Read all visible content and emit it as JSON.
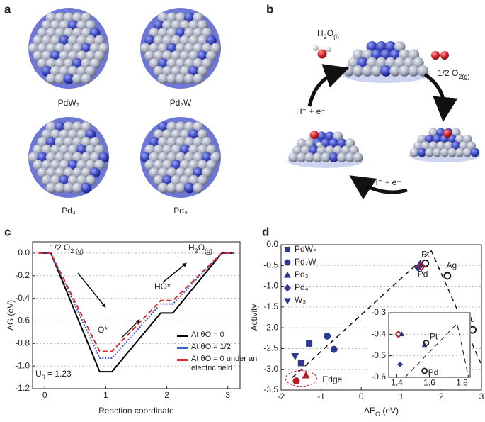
{
  "panel_labels": [
    "a",
    "b",
    "c",
    "d"
  ],
  "panel_a": {
    "labels": [
      "PdW₂",
      "Pd₂W",
      "Pd₃",
      "Pd₄"
    ]
  },
  "panel_b": {
    "labels": [
      [
        "H",
        "2",
        "O",
        "(l)"
      ],
      [
        "1/2 O",
        "2(g)"
      ],
      [
        "H⁺ + e⁻"
      ],
      [
        "H⁺ + e⁻"
      ]
    ]
  },
  "chart_data": [
    {
      "type": "line",
      "x_label": "Reaction coordinate",
      "y_label": "ΔG (eV)",
      "x": [
        -0.1,
        0.1,
        0.9,
        1.1,
        1.9,
        2.1,
        2.9,
        3.1
      ],
      "xlim": [
        -0.2,
        3.2
      ],
      "xticks": [
        0,
        1,
        2,
        3
      ],
      "ylim": [
        -1.2,
        0.1
      ],
      "yticks": [
        {
          "value": 0,
          "label": "0.0"
        },
        -0.2,
        -0.4,
        -0.6,
        -0.8,
        {
          "value": -1,
          "label": "-1.0"
        },
        -1.2
      ],
      "grid": true,
      "series": [
        {
          "name": "At θO = 0",
          "color": "#000000",
          "dash": "solid",
          "values": [
            0,
            0,
            -1.05,
            -1.05,
            -0.53,
            -0.53,
            0,
            0
          ]
        },
        {
          "name": "At θO = 1/2",
          "color": "#3a5fcd",
          "dash": "dotted",
          "values": [
            0,
            0,
            -0.93,
            -0.93,
            -0.45,
            -0.45,
            0,
            0
          ]
        },
        {
          "name": "At θO = 0 under an electric field",
          "color": "#e0292b",
          "dash": "dashed",
          "values": [
            0,
            0,
            -0.87,
            -0.87,
            -0.42,
            -0.42,
            0,
            0
          ]
        }
      ],
      "annotations": [
        [
          "1/2 O",
          "2 (g)"
        ],
        [
          "O*"
        ],
        [
          "HO*"
        ],
        [
          "H",
          "2",
          "O",
          "(g)"
        ],
        [
          "U",
          "0",
          " = 1.23"
        ]
      ]
    },
    {
      "type": "scatter",
      "x_label": [
        "ΔE",
        "O",
        " (eV)"
      ],
      "y_label": "Activity",
      "xlim": [
        -2,
        3
      ],
      "xticks": [
        -2,
        -1,
        0,
        1,
        2,
        3
      ],
      "ylim": [
        -3.5,
        0
      ],
      "yticks": [
        {
          "value": 0,
          "label": "0.0"
        },
        -0.5,
        {
          "value": -1,
          "label": "-1.0"
        },
        -1.5,
        {
          "value": -2,
          "label": "-2.0"
        },
        -2.5,
        {
          "value": -3,
          "label": "-3.0"
        },
        -3.5
      ],
      "grid": true,
      "series": [
        {
          "name": "PdW₂",
          "color": "#2b3990",
          "marker": "square",
          "x": [
            -1.5,
            -1.3
          ],
          "y": [
            -2.85,
            -2.38
          ]
        },
        {
          "name": "Pd₂W",
          "color": "#2b3990",
          "marker": "circle",
          "x": [
            -0.85,
            -0.68
          ],
          "y": [
            -2.2,
            -2.52
          ]
        },
        {
          "name": "Pd₃",
          "color": "#2b3990",
          "marker": "triangle",
          "x": [
            1.47
          ],
          "y": [
            -0.47
          ]
        },
        {
          "name": "Pd₄",
          "color": "#2b3990",
          "marker": "diamond",
          "x": [
            1.42
          ],
          "y": [
            -0.55
          ]
        },
        {
          "name": "W₃",
          "color": "#2b3990",
          "marker": "triangle-down",
          "x": [
            -1.65
          ],
          "y": [
            -2.68
          ]
        }
      ],
      "edge": {
        "label": "Edge",
        "color": "#b01e23",
        "markers": [
          "circle",
          "triangle"
        ],
        "x": [
          -1.62,
          -1.38
        ],
        "y": [
          -3.28,
          -3.15
        ]
      },
      "metals": {
        "labels": [
          "Pt",
          "Pd",
          "Ag",
          "Au"
        ],
        "x": [
          1.6,
          1.5,
          2.15,
          2.78
        ],
        "y": [
          -0.45,
          -0.52,
          -0.75,
          -2.05
        ]
      },
      "trend_line": {
        "x": [
          -1.72,
          1.75,
          2.98
        ],
        "y": [
          -3.2,
          -0.15,
          -2.85
        ]
      },
      "inset": {
        "xlim": [
          1.35,
          1.85
        ],
        "xticks": [
          1.4,
          1.6,
          1.8
        ],
        "ylim": [
          -0.6,
          -0.3
        ],
        "yticks": [
          -0.3,
          -0.4,
          -0.5,
          -0.6
        ],
        "grid": true,
        "series": [
          {
            "color": "#b01e23",
            "marker": "diamond",
            "hollow": true,
            "x": [
              1.41
            ],
            "y": [
              -0.4
            ]
          },
          {
            "color": "#2b3990",
            "marker": "triangle",
            "x": [
              1.43,
              1.57
            ],
            "y": [
              -0.4,
              -0.45
            ]
          },
          {
            "color": "#2b3990",
            "marker": "diamond",
            "x": [
              1.42
            ],
            "y": [
              -0.54
            ]
          },
          {
            "color": "#222222",
            "marker": "circle",
            "hollow": true,
            "labels": [
              "Pt",
              "Pd"
            ],
            "x": [
              1.58,
              1.57
            ],
            "y": [
              -0.44,
              -0.57
            ]
          }
        ],
        "trend_line": {
          "x": [
            1.45,
            1.77,
            1.84
          ],
          "y": [
            -0.6,
            -0.35,
            -0.6
          ]
        }
      }
    }
  ]
}
